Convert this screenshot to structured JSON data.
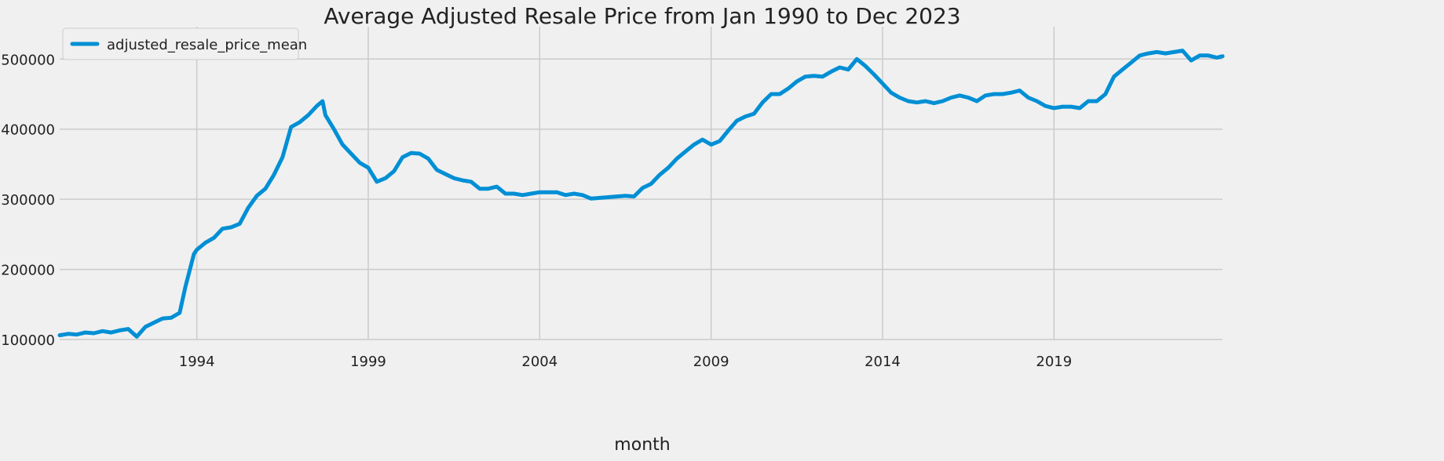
{
  "chart_data": {
    "type": "line",
    "title": "Average Adjusted Resale Price from Jan 1990 to Dec 2023",
    "xlabel": "month",
    "ylabel": "",
    "x_range": [
      "1990-01",
      "2023-12"
    ],
    "ylim": [
      100000,
      535000
    ],
    "grid": true,
    "legend_position": "top-left",
    "x_ticks": [
      "1994",
      "1999",
      "2004",
      "2009",
      "2014",
      "2019"
    ],
    "y_ticks": [
      {
        "value": 100000,
        "label": "100000"
      },
      {
        "value": 200000,
        "label": "200000"
      },
      {
        "value": 300000,
        "label": "300000"
      },
      {
        "value": 400000,
        "label": "400000"
      },
      {
        "value": 500000,
        "label": "500000"
      }
    ],
    "series": [
      {
        "name": "adjusted_resale_price_mean",
        "color": "#008fd5",
        "points": [
          [
            "1990-01",
            106000
          ],
          [
            "1990-04",
            108000
          ],
          [
            "1990-07",
            107000
          ],
          [
            "1990-10",
            110000
          ],
          [
            "1991-01",
            109000
          ],
          [
            "1991-04",
            112000
          ],
          [
            "1991-07",
            110000
          ],
          [
            "1991-10",
            113000
          ],
          [
            "1992-01",
            115000
          ],
          [
            "1992-04",
            104000
          ],
          [
            "1992-07",
            118000
          ],
          [
            "1992-10",
            124000
          ],
          [
            "1993-01",
            130000
          ],
          [
            "1993-04",
            131000
          ],
          [
            "1993-07",
            138000
          ],
          [
            "1993-09",
            175000
          ],
          [
            "1993-12",
            222000
          ],
          [
            "1994-01",
            228000
          ],
          [
            "1994-04",
            238000
          ],
          [
            "1994-07",
            245000
          ],
          [
            "1994-10",
            258000
          ],
          [
            "1995-01",
            260000
          ],
          [
            "1995-04",
            265000
          ],
          [
            "1995-07",
            288000
          ],
          [
            "1995-10",
            305000
          ],
          [
            "1996-01",
            315000
          ],
          [
            "1996-04",
            335000
          ],
          [
            "1996-07",
            360000
          ],
          [
            "1996-10",
            403000
          ],
          [
            "1997-01",
            410000
          ],
          [
            "1997-04",
            420000
          ],
          [
            "1997-07",
            433000
          ],
          [
            "1997-09",
            440000
          ],
          [
            "1997-10",
            420000
          ],
          [
            "1998-01",
            400000
          ],
          [
            "1998-04",
            378000
          ],
          [
            "1998-07",
            365000
          ],
          [
            "1998-10",
            352000
          ],
          [
            "1999-01",
            345000
          ],
          [
            "1999-04",
            325000
          ],
          [
            "1999-07",
            330000
          ],
          [
            "1999-10",
            340000
          ],
          [
            "2000-01",
            360000
          ],
          [
            "2000-04",
            366000
          ],
          [
            "2000-07",
            365000
          ],
          [
            "2000-10",
            358000
          ],
          [
            "2001-01",
            342000
          ],
          [
            "2001-04",
            336000
          ],
          [
            "2001-07",
            330000
          ],
          [
            "2001-10",
            327000
          ],
          [
            "2002-01",
            325000
          ],
          [
            "2002-04",
            315000
          ],
          [
            "2002-07",
            315000
          ],
          [
            "2002-10",
            318000
          ],
          [
            "2003-01",
            308000
          ],
          [
            "2003-04",
            308000
          ],
          [
            "2003-07",
            306000
          ],
          [
            "2003-10",
            308000
          ],
          [
            "2004-01",
            310000
          ],
          [
            "2004-04",
            310000
          ],
          [
            "2004-07",
            310000
          ],
          [
            "2004-10",
            306000
          ],
          [
            "2005-01",
            308000
          ],
          [
            "2005-04",
            306000
          ],
          [
            "2005-07",
            301000
          ],
          [
            "2005-10",
            302000
          ],
          [
            "2006-01",
            303000
          ],
          [
            "2006-04",
            304000
          ],
          [
            "2006-07",
            305000
          ],
          [
            "2006-10",
            304000
          ],
          [
            "2007-01",
            316000
          ],
          [
            "2007-04",
            322000
          ],
          [
            "2007-07",
            335000
          ],
          [
            "2007-10",
            345000
          ],
          [
            "2008-01",
            358000
          ],
          [
            "2008-04",
            368000
          ],
          [
            "2008-07",
            378000
          ],
          [
            "2008-10",
            385000
          ],
          [
            "2009-01",
            378000
          ],
          [
            "2009-04",
            383000
          ],
          [
            "2009-07",
            398000
          ],
          [
            "2009-10",
            412000
          ],
          [
            "2010-01",
            418000
          ],
          [
            "2010-04",
            422000
          ],
          [
            "2010-07",
            438000
          ],
          [
            "2010-10",
            450000
          ],
          [
            "2011-01",
            450000
          ],
          [
            "2011-04",
            458000
          ],
          [
            "2011-07",
            468000
          ],
          [
            "2011-10",
            475000
          ],
          [
            "2012-01",
            476000
          ],
          [
            "2012-04",
            475000
          ],
          [
            "2012-07",
            482000
          ],
          [
            "2012-10",
            488000
          ],
          [
            "2013-01",
            485000
          ],
          [
            "2013-04",
            500000
          ],
          [
            "2013-07",
            490000
          ],
          [
            "2013-10",
            478000
          ],
          [
            "2014-01",
            465000
          ],
          [
            "2014-04",
            452000
          ],
          [
            "2014-07",
            445000
          ],
          [
            "2014-10",
            440000
          ],
          [
            "2015-01",
            438000
          ],
          [
            "2015-04",
            440000
          ],
          [
            "2015-07",
            437000
          ],
          [
            "2015-10",
            440000
          ],
          [
            "2016-01",
            445000
          ],
          [
            "2016-04",
            448000
          ],
          [
            "2016-07",
            445000
          ],
          [
            "2016-10",
            440000
          ],
          [
            "2017-01",
            448000
          ],
          [
            "2017-04",
            450000
          ],
          [
            "2017-07",
            450000
          ],
          [
            "2017-10",
            452000
          ],
          [
            "2018-01",
            455000
          ],
          [
            "2018-04",
            445000
          ],
          [
            "2018-07",
            440000
          ],
          [
            "2018-10",
            433000
          ],
          [
            "2019-01",
            430000
          ],
          [
            "2019-04",
            432000
          ],
          [
            "2019-07",
            432000
          ],
          [
            "2019-10",
            430000
          ],
          [
            "2020-01",
            440000
          ],
          [
            "2020-04",
            440000
          ],
          [
            "2020-07",
            450000
          ],
          [
            "2020-10",
            475000
          ],
          [
            "2021-01",
            485000
          ],
          [
            "2021-04",
            495000
          ],
          [
            "2021-07",
            505000
          ],
          [
            "2021-10",
            508000
          ],
          [
            "2022-01",
            510000
          ],
          [
            "2022-04",
            508000
          ],
          [
            "2022-07",
            510000
          ],
          [
            "2022-10",
            512000
          ],
          [
            "2023-01",
            498000
          ],
          [
            "2023-04",
            505000
          ],
          [
            "2023-07",
            505000
          ],
          [
            "2023-10",
            502000
          ],
          [
            "2023-12",
            504000
          ]
        ]
      }
    ]
  }
}
